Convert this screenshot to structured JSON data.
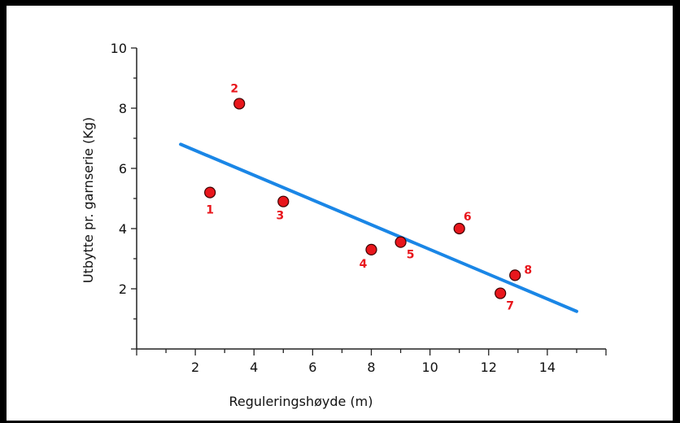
{
  "chart_data": {
    "type": "scatter",
    "title": "",
    "xlabel": "Reguleringshøyde (m)",
    "ylabel": "Utbytte pr. garnserie (Kg)",
    "xlim": [
      0,
      16
    ],
    "ylim": [
      0,
      10
    ],
    "xticks": [
      "2",
      "4",
      "6",
      "8",
      "10",
      "12",
      "14"
    ],
    "yticks": [
      "2",
      "4",
      "6",
      "8",
      "10"
    ],
    "points": [
      {
        "label": "1",
        "x": 2.5,
        "y": 5.2
      },
      {
        "label": "2",
        "x": 3.5,
        "y": 8.15
      },
      {
        "label": "3",
        "x": 5.0,
        "y": 4.9
      },
      {
        "label": "4",
        "x": 8.0,
        "y": 3.3
      },
      {
        "label": "5",
        "x": 9.0,
        "y": 3.55
      },
      {
        "label": "6",
        "x": 11.0,
        "y": 4.0
      },
      {
        "label": "7",
        "x": 12.4,
        "y": 1.85
      },
      {
        "label": "8",
        "x": 12.9,
        "y": 2.45
      }
    ],
    "trendline": {
      "x": [
        1.5,
        15.0
      ],
      "y": [
        6.8,
        1.25
      ]
    },
    "colors": {
      "points": "#e8161c",
      "trendline": "#1a86e6",
      "labels": "#e8161c"
    },
    "grid": false,
    "legend": "none"
  }
}
